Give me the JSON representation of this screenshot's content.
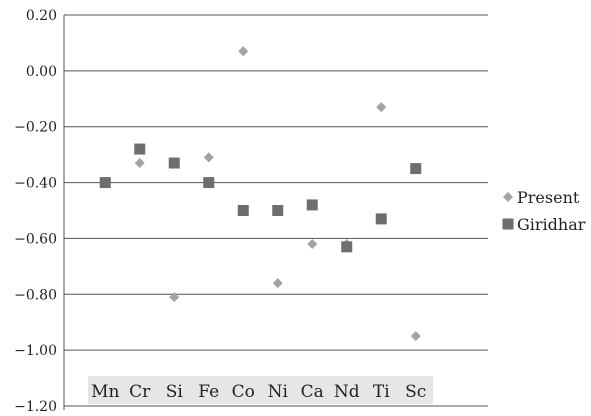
{
  "chart_data": {
    "type": "scatter",
    "categories": [
      "Mn",
      "Cr",
      "Si",
      "Fe",
      "Co",
      "Ni",
      "Ca",
      "Nd",
      "Ti",
      "Sc"
    ],
    "series": [
      {
        "name": "Present",
        "marker": "diamond",
        "color": "#a3a3a3",
        "values": [
          -0.4,
          -0.33,
          -0.81,
          -0.31,
          0.07,
          -0.76,
          -0.62,
          -0.62,
          -0.13,
          -0.95
        ]
      },
      {
        "name": "Giridhar",
        "marker": "square",
        "color": "#6e6e6e",
        "values": [
          -0.4,
          -0.28,
          -0.33,
          -0.4,
          -0.5,
          -0.5,
          -0.48,
          -0.63,
          -0.53,
          -0.35
        ]
      }
    ],
    "ylim": [
      -1.2,
      0.2
    ],
    "yticks": [
      "0.20",
      "0.00",
      "−0.20",
      "−0.40",
      "−0.60",
      "−0.80",
      "−1.00",
      "−1.20"
    ],
    "grid": true,
    "legend": "right",
    "category_labels_position": "bottom-inside",
    "category_label_background": "#e6e6e6",
    "gridline_color": "#555555"
  }
}
